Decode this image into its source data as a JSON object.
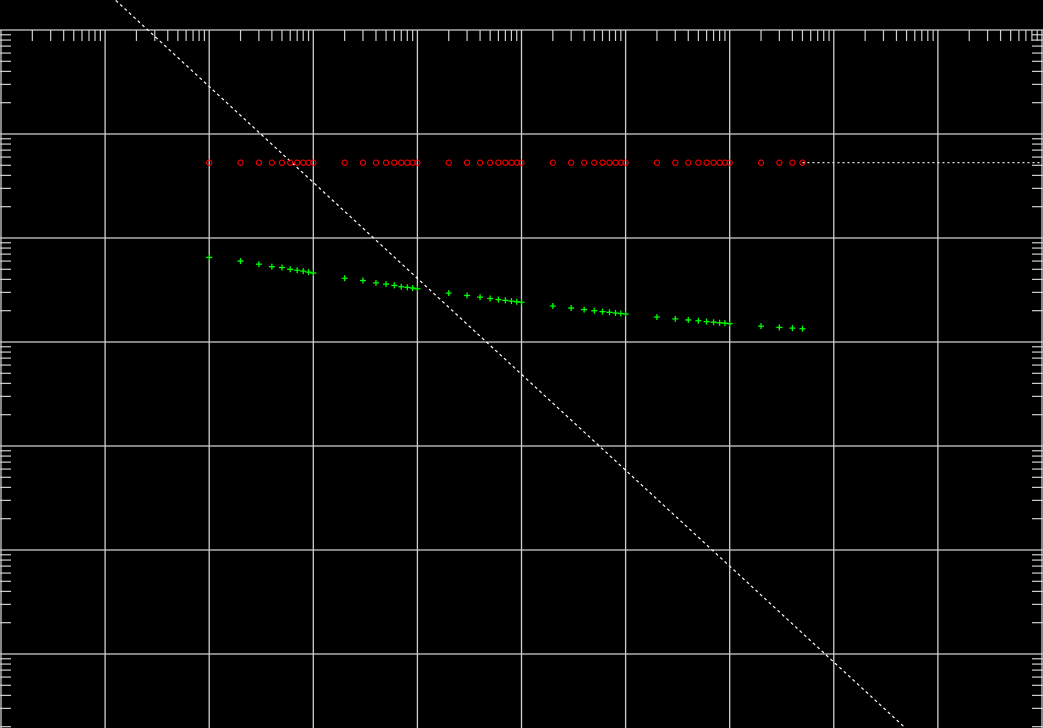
{
  "chart_data": {
    "type": "scatter",
    "title": "",
    "xlabel": "",
    "ylabel": "",
    "x_scale": "log",
    "y_scale": "log",
    "xlim": [
      1,
      10000000000.0
    ],
    "ylim": [
      10000000.0,
      1
    ],
    "grid": true,
    "legend": "none",
    "background": "#000000",
    "grid_color": "#cfcfcf",
    "series": [
      {
        "marker": "plus",
        "color": "#00ff00",
        "x": [
          100.0,
          200.0,
          300.0,
          400.0,
          500.0,
          600.0,
          700.0,
          800.0,
          900.0,
          1000.0,
          2000.0,
          3000.0,
          4000.0,
          5000.0,
          6000.0,
          7000.0,
          8000.0,
          9000.0,
          10000.0,
          20000.0,
          30000.0,
          40000.0,
          50000.0,
          60000.0,
          70000.0,
          80000.0,
          90000.0,
          100000.0,
          200000.0,
          300000.0,
          400000.0,
          500000.0,
          600000.0,
          700000.0,
          800000.0,
          900000.0,
          1000000.0,
          2000000.0,
          3000000.0,
          4000000.0,
          5000000.0,
          6000000.0,
          7000000.0,
          8000000.0,
          9000000.0,
          10000000.0,
          20000000.0,
          30000000.0,
          40000000.0,
          50000000.0
        ],
        "y": [
          65000.0,
          60000.0,
          56000.0,
          53000.0,
          52000.0,
          50000.0,
          49000.0,
          48000.0,
          47000.0,
          46000.0,
          41000.0,
          39000.0,
          37000.0,
          36000.0,
          35000.0,
          34000.0,
          33500.0,
          33000.0,
          32500.0,
          29500.0,
          28000.0,
          27000.0,
          26200.0,
          25600.0,
          25100.0,
          24700.0,
          24400.0,
          24100.0,
          22200.0,
          21200.0,
          20500.0,
          20000.0,
          19600.0,
          19300.0,
          19000.0,
          18800.0,
          18600.0,
          17400.0,
          16700.0,
          16300.0,
          16000.0,
          15700.0,
          15500.0,
          15300.0,
          15200.0,
          15000.0,
          14200.0,
          13800.0,
          13600.0,
          13400.0
        ]
      },
      {
        "marker": "circle",
        "color": "#ff0000",
        "x": [
          100.0,
          200.0,
          300.0,
          400.0,
          500.0,
          600.0,
          700.0,
          800.0,
          900.0,
          1000.0,
          2000.0,
          3000.0,
          4000.0,
          5000.0,
          6000.0,
          7000.0,
          8000.0,
          9000.0,
          10000.0,
          20000.0,
          30000.0,
          40000.0,
          50000.0,
          60000.0,
          70000.0,
          80000.0,
          90000.0,
          100000.0,
          200000.0,
          300000.0,
          400000.0,
          500000.0,
          600000.0,
          700000.0,
          800000.0,
          900000.0,
          1000000.0,
          2000000.0,
          3000000.0,
          4000000.0,
          5000000.0,
          6000000.0,
          7000000.0,
          8000000.0,
          9000000.0,
          10000000.0,
          20000000.0,
          30000000.0,
          40000000.0,
          50000000.0
        ],
        "y": [
          530000.0,
          530000.0,
          530000.0,
          530000.0,
          530000.0,
          530000.0,
          530000.0,
          530000.0,
          530000.0,
          530000.0,
          530000.0,
          530000.0,
          530000.0,
          530000.0,
          530000.0,
          530000.0,
          530000.0,
          530000.0,
          530000.0,
          530000.0,
          530000.0,
          530000.0,
          530000.0,
          530000.0,
          530000.0,
          530000.0,
          530000.0,
          530000.0,
          530000.0,
          530000.0,
          530000.0,
          530000.0,
          530000.0,
          530000.0,
          530000.0,
          530000.0,
          530000.0,
          530000.0,
          530000.0,
          530000.0,
          530000.0,
          530000.0,
          530000.0,
          530000.0,
          530000.0,
          530000.0,
          530000.0,
          530000.0,
          530000.0,
          530000.0
        ]
      }
    ],
    "reference_lines": [
      {
        "kind": "diagonal",
        "style": "dotted",
        "color": "#ffffff",
        "points": [
          [
            1,
            200000000.0
          ],
          [
            1000000000.0,
            1
          ]
        ]
      },
      {
        "kind": "horizontal",
        "style": "dotted",
        "color": "#ffffff",
        "y": 530000.0,
        "x_range": [
          50000000.0,
          10000000000.0
        ]
      }
    ]
  }
}
